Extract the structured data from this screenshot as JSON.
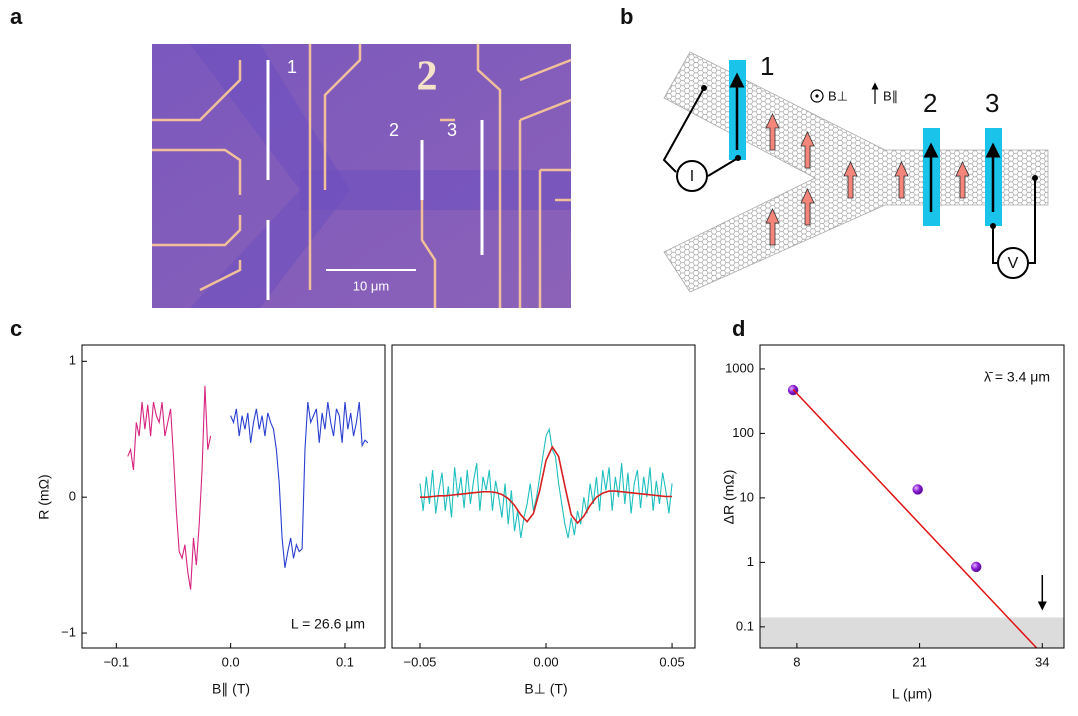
{
  "panels": {
    "a": {
      "label": "a",
      "electrode_labels": [
        "1",
        "2",
        "3"
      ],
      "device_number": "2",
      "scale_bar": "10 μm"
    },
    "b": {
      "label": "b",
      "contact_labels": [
        "1",
        "2",
        "3"
      ],
      "field_labels": [
        "B⊥",
        "B∥"
      ],
      "current_label": "I",
      "voltage_label": "V"
    },
    "c": {
      "label": "c"
    },
    "d": {
      "label": "d"
    }
  },
  "chart_data": [
    {
      "type": "line",
      "xlabel": "B∥ (T)",
      "ylabel": "R (mΩ)",
      "annotation": "L = 26.6 μm",
      "xlim": [
        -0.13,
        0.135
      ],
      "ylim": [
        -1.11,
        1.12
      ],
      "xticks": [
        {
          "value": -0.1,
          "label": "−0.1"
        },
        {
          "value": 0,
          "label": "0.0"
        },
        0.1
      ],
      "yticks": [
        {
          "value": -1,
          "label": "−1"
        },
        0,
        1
      ],
      "series": [
        {
          "color": "#d6247f",
          "x": [
            -0.09,
            -0.0875,
            -0.085,
            -0.0825,
            -0.08,
            -0.0775,
            -0.075,
            -0.0725,
            -0.07,
            -0.0675,
            -0.065,
            -0.0625,
            -0.06,
            -0.0575,
            -0.055,
            -0.0525,
            -0.05,
            -0.0475,
            -0.045,
            -0.0425,
            -0.04,
            -0.0375,
            -0.035,
            -0.0325,
            -0.03,
            -0.0275,
            -0.025,
            -0.0225,
            -0.02,
            -0.0175
          ],
          "values": [
            0.3,
            0.35,
            0.2,
            0.55,
            0.45,
            0.7,
            0.5,
            0.68,
            0.45,
            0.7,
            0.6,
            0.55,
            0.7,
            0.45,
            0.55,
            0.65,
            0.3,
            -0.1,
            -0.4,
            -0.45,
            -0.35,
            -0.55,
            -0.68,
            -0.3,
            -0.5,
            -0.2,
            0.2,
            0.82,
            0.35,
            0.45
          ]
        },
        {
          "color": "#2a3fd0",
          "x": [
            0,
            0.0025,
            0.005,
            0.0075,
            0.01,
            0.0125,
            0.015,
            0.0175,
            0.02,
            0.0225,
            0.025,
            0.0275,
            0.03,
            0.0325,
            0.035,
            0.0375,
            0.04,
            0.0425,
            0.045,
            0.0475,
            0.05,
            0.0525,
            0.055,
            0.0575,
            0.06,
            0.0625,
            0.065,
            0.0675,
            0.07,
            0.0725,
            0.075,
            0.0775,
            0.08,
            0.0825,
            0.085,
            0.0875,
            0.09,
            0.0925,
            0.095,
            0.0975,
            0.1,
            0.1025,
            0.105,
            0.1075,
            0.11,
            0.1125,
            0.115,
            0.1175,
            0.12
          ],
          "values": [
            0.6,
            0.55,
            0.65,
            0.45,
            0.6,
            0.5,
            0.62,
            0.4,
            0.55,
            0.65,
            0.5,
            0.6,
            0.45,
            0.62,
            0.55,
            0.5,
            0.35,
            0.1,
            -0.3,
            -0.52,
            -0.4,
            -0.3,
            -0.45,
            -0.35,
            -0.4,
            -0.38,
            0.35,
            0.7,
            0.55,
            0.6,
            0.65,
            0.4,
            0.62,
            0.5,
            0.7,
            0.55,
            0.45,
            0.65,
            0.6,
            0.4,
            0.7,
            0.5,
            0.62,
            0.45,
            0.55,
            0.7,
            0.38,
            0.42,
            0.4
          ]
        }
      ]
    },
    {
      "type": "line",
      "xlabel": "B⊥ (T)",
      "xlim": [
        -0.0611,
        0.0591
      ],
      "ylim": [
        -1.11,
        1.12
      ],
      "xticks": [
        {
          "value": -0.05,
          "label": "−0.05"
        },
        {
          "value": 0,
          "label": "0.00"
        },
        0.05
      ],
      "series": [
        {
          "color": "#1fbfbf",
          "x": [
            -0.05,
            -0.04875,
            -0.0475,
            -0.04625,
            -0.045,
            -0.04375,
            -0.0425,
            -0.04125,
            -0.04,
            -0.03875,
            -0.0375,
            -0.03625,
            -0.035,
            -0.03375,
            -0.0325,
            -0.03125,
            -0.03,
            -0.02875,
            -0.0275,
            -0.02625,
            -0.025,
            -0.02375,
            -0.0225,
            -0.02125,
            -0.02,
            -0.01875,
            -0.0175,
            -0.01625,
            -0.015,
            -0.01375,
            -0.0125,
            -0.01125,
            -0.01,
            -0.00875,
            -0.0075,
            -0.00625,
            -0.005,
            -0.00375,
            -0.0025,
            -0.00125,
            0,
            0.00125,
            0.0025,
            0.00375,
            0.005,
            0.00625,
            0.0075,
            0.00875,
            0.01,
            0.01125,
            0.0125,
            0.01375,
            0.015,
            0.01625,
            0.0175,
            0.01875,
            0.02,
            0.02125,
            0.0225,
            0.02375,
            0.025,
            0.02625,
            0.0275,
            0.02875,
            0.03,
            0.03125,
            0.0325,
            0.03375,
            0.035,
            0.03625,
            0.0375,
            0.03875,
            0.04,
            0.04125,
            0.0425,
            0.04375,
            0.045,
            0.04625,
            0.0475,
            0.04875,
            0.05
          ],
          "values": [
            0.1,
            -0.1,
            0.15,
            -0.05,
            0.2,
            -0.12,
            0.05,
            0.18,
            -0.1,
            0.08,
            -0.15,
            0.22,
            0,
            0.15,
            -0.08,
            0.2,
            -0.05,
            0.12,
            0.25,
            -0.1,
            0.15,
            0.05,
            0.2,
            -0.1,
            0.12,
            0,
            -0.15,
            0.1,
            -0.2,
            0.05,
            -0.25,
            -0.1,
            -0.3,
            -0.15,
            -0.05,
            0.1,
            -0.1,
            0,
            0.15,
            0.3,
            0.45,
            0.5,
            0.35,
            0.3,
            0.1,
            -0.05,
            -0.2,
            -0.3,
            -0.15,
            -0.28,
            -0.1,
            -0.2,
            0,
            -0.12,
            0.1,
            -0.05,
            0.15,
            -0.1,
            0.2,
            0.05,
            0.22,
            -0.1,
            0.15,
            0,
            0.25,
            -0.05,
            0.18,
            -0.12,
            0.1,
            0.2,
            -0.08,
            0.15,
            0,
            0.22,
            -0.1,
            0.12,
            -0.05,
            0.18,
            0.05,
            -0.12,
            0.1
          ]
        },
        {
          "color": "#d62020",
          "x": [
            -0.05,
            -0.0475,
            -0.045,
            -0.0425,
            -0.04,
            -0.0375,
            -0.035,
            -0.0325,
            -0.03,
            -0.0275,
            -0.025,
            -0.0225,
            -0.02,
            -0.0175,
            -0.015,
            -0.0125,
            -0.01,
            -0.0075,
            -0.005,
            -0.0025,
            0,
            0.0025,
            0.005,
            0.0075,
            0.01,
            0.0125,
            0.015,
            0.0175,
            0.02,
            0.0225,
            0.025,
            0.0275,
            0.03,
            0.0325,
            0.035,
            0.0375,
            0.04,
            0.0425,
            0.045,
            0.0475,
            0.05
          ],
          "values": [
            0,
            0,
            0.005,
            0.01,
            0.01,
            0.015,
            0.02,
            0.025,
            0.03,
            0.035,
            0.04,
            0.04,
            0.035,
            0.02,
            -0.01,
            -0.06,
            -0.13,
            -0.18,
            -0.12,
            0.05,
            0.27,
            0.37,
            0.3,
            0.08,
            -0.13,
            -0.19,
            -0.14,
            -0.06,
            0,
            0.03,
            0.045,
            0.045,
            0.04,
            0.035,
            0.03,
            0.025,
            0.02,
            0.015,
            0.01,
            0.005,
            0.005
          ]
        }
      ]
    },
    {
      "type": "scatter",
      "xlabel": "L (μm)",
      "ylabel": "ΔR (mΩ)",
      "annotation": "λ̄ = 3.4 μm",
      "ylog": true,
      "xlim": [
        4.09,
        36.3
      ],
      "ylim": [
        0.047,
        2350
      ],
      "xticks": [
        8,
        21,
        34
      ],
      "yticks": [
        0.1,
        1,
        10,
        100,
        1000
      ],
      "series": [
        {
          "color": "#8a1fd6",
          "x": [
            7.6,
            20.8,
            27
          ],
          "values": [
            470,
            13.5,
            0.85
          ]
        }
      ],
      "fit": {
        "color": "#e01010",
        "x": [
          7.6,
          33.4
        ],
        "values": [
          480,
          0.047
        ]
      },
      "band": {
        "color": "#dcdcdc",
        "ylim": [
          0.047,
          0.14
        ]
      },
      "arrow_x": 34
    }
  ]
}
